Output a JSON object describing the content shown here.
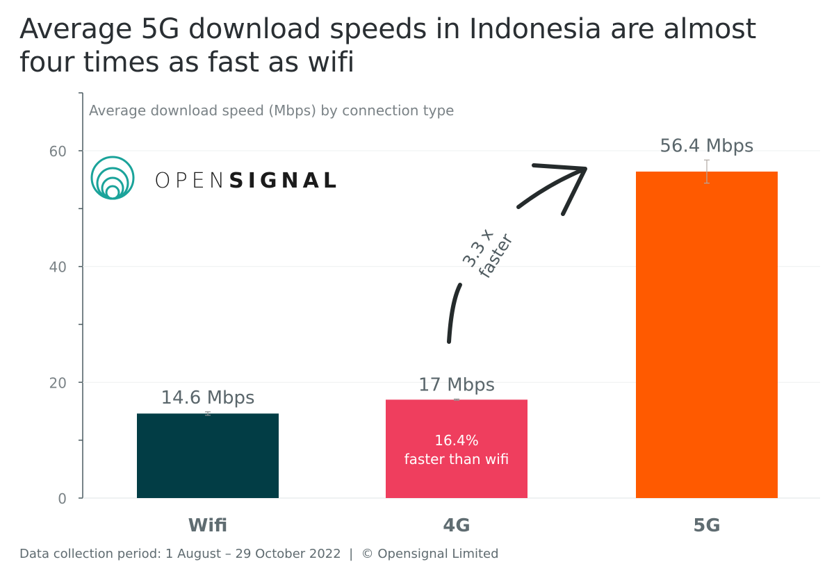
{
  "title": "Average 5G download speeds in Indonesia are almost four times as fast as wifi",
  "footer": "Data collection period: 1 August – 29 October 2022  |  © Opensignal Limited",
  "logo": {
    "text_light": "OPEN",
    "text_bold": "SIGNAL",
    "color": "#1aa39a"
  },
  "chart_data": {
    "type": "bar",
    "title": "Average download speed (Mbps) by connection type",
    "xlabel": "",
    "ylabel": "",
    "categories": [
      "Wifi",
      "4G",
      "5G"
    ],
    "values": [
      14.6,
      17,
      56.4
    ],
    "value_labels": [
      "14.6 Mbps",
      "17 Mbps",
      "56.4 Mbps"
    ],
    "error_ranges": [
      [
        14.3,
        14.9
      ],
      [
        16.9,
        17.1
      ],
      [
        54.4,
        58.4
      ]
    ],
    "colors": [
      "#023d45",
      "#ef3e5e",
      "#ff5a00"
    ],
    "ylim": [
      0,
      70
    ],
    "yticks": [
      0,
      20,
      40,
      60
    ],
    "minor_yticks": [
      10,
      30,
      50
    ],
    "grid": true,
    "annotations": {
      "inner_4g": [
        "16.4%",
        "faster than wifi"
      ],
      "arrow_text": [
        "3.3 x",
        "faster"
      ]
    }
  }
}
